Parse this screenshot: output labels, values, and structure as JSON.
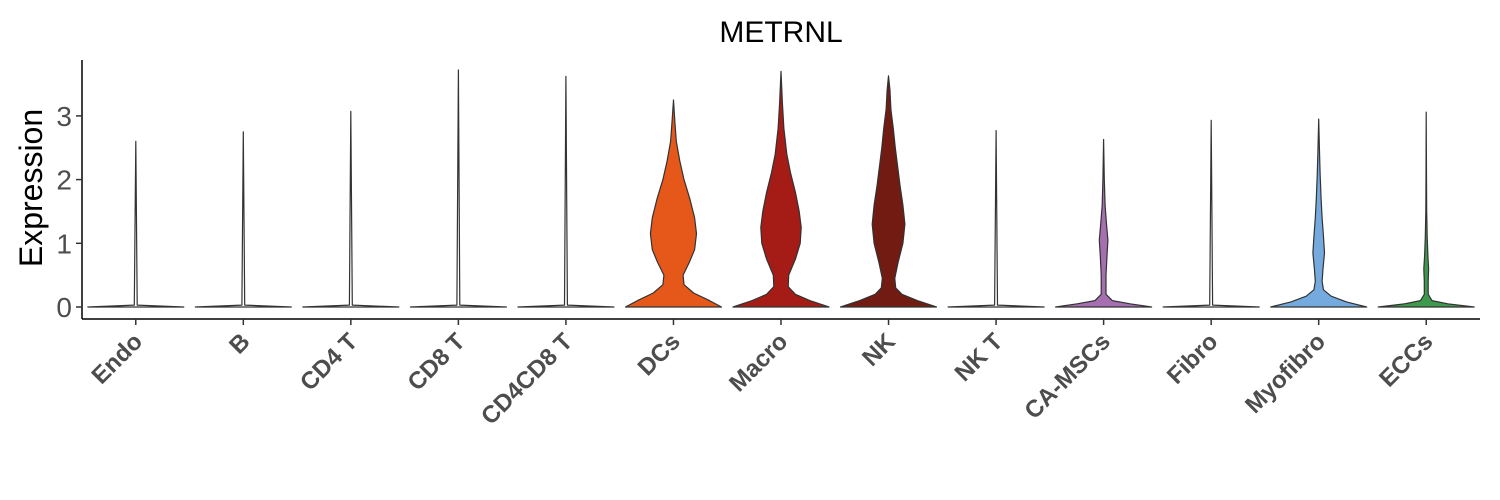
{
  "chart_data": {
    "type": "violin",
    "title": "METRNL",
    "ylabel": "Expression",
    "xlabel": "",
    "ylim": [
      -0.2,
      3.9
    ],
    "yticks": [
      0,
      1,
      2,
      3
    ],
    "yticklabels": [
      "0",
      "1",
      "2",
      "3"
    ],
    "grid": false,
    "legend": "none",
    "categories": [
      "Endo",
      "B",
      "CD4 T",
      "CD8 T",
      "CD4CD8 T",
      "DCs",
      "Macro",
      "NK",
      "NK T",
      "CA-MSCs",
      "Fibro",
      "Myofibro",
      "ECCs"
    ],
    "violins": [
      {
        "category": "Endo",
        "color": "#ffffff",
        "max": 2.6,
        "profile": [
          [
            0,
            1.0
          ],
          [
            0.03,
            0.03
          ],
          [
            2.6,
            0.0
          ]
        ]
      },
      {
        "category": "B",
        "color": "#ffffff",
        "max": 2.75,
        "profile": [
          [
            0,
            1.0
          ],
          [
            0.03,
            0.03
          ],
          [
            2.75,
            0.0
          ]
        ]
      },
      {
        "category": "CD4 T",
        "color": "#ffffff",
        "max": 3.07,
        "profile": [
          [
            0,
            1.0
          ],
          [
            0.03,
            0.03
          ],
          [
            3.07,
            0.0
          ]
        ]
      },
      {
        "category": "CD8 T",
        "color": "#ffffff",
        "max": 3.72,
        "profile": [
          [
            0,
            1.0
          ],
          [
            0.03,
            0.03
          ],
          [
            3.72,
            0.0
          ]
        ]
      },
      {
        "category": "CD4CD8 T",
        "color": "#ffffff",
        "max": 3.62,
        "profile": [
          [
            0,
            1.0
          ],
          [
            0.03,
            0.03
          ],
          [
            3.62,
            0.0
          ]
        ]
      },
      {
        "category": "DCs",
        "color": "#e6581a",
        "max": 3.25,
        "profile": [
          [
            0,
            1.0
          ],
          [
            0.1,
            0.75
          ],
          [
            0.22,
            0.42
          ],
          [
            0.35,
            0.22
          ],
          [
            0.5,
            0.2
          ],
          [
            0.7,
            0.33
          ],
          [
            0.9,
            0.44
          ],
          [
            1.15,
            0.48
          ],
          [
            1.4,
            0.44
          ],
          [
            1.7,
            0.34
          ],
          [
            2.0,
            0.22
          ],
          [
            2.3,
            0.13
          ],
          [
            2.6,
            0.06
          ],
          [
            2.9,
            0.03
          ],
          [
            3.25,
            0.0
          ]
        ]
      },
      {
        "category": "Macro",
        "color": "#a51b16",
        "max": 3.7,
        "profile": [
          [
            0,
            1.0
          ],
          [
            0.1,
            0.6
          ],
          [
            0.2,
            0.3
          ],
          [
            0.32,
            0.15
          ],
          [
            0.5,
            0.16
          ],
          [
            0.75,
            0.3
          ],
          [
            1.0,
            0.4
          ],
          [
            1.25,
            0.42
          ],
          [
            1.5,
            0.38
          ],
          [
            1.8,
            0.3
          ],
          [
            2.1,
            0.2
          ],
          [
            2.4,
            0.12
          ],
          [
            2.8,
            0.06
          ],
          [
            3.2,
            0.03
          ],
          [
            3.7,
            0.0
          ]
        ]
      },
      {
        "category": "NK",
        "color": "#711b12",
        "max": 3.63,
        "profile": [
          [
            0,
            1.0
          ],
          [
            0.1,
            0.6
          ],
          [
            0.2,
            0.28
          ],
          [
            0.3,
            0.15
          ],
          [
            0.45,
            0.13
          ],
          [
            0.7,
            0.2
          ],
          [
            1.0,
            0.3
          ],
          [
            1.3,
            0.34
          ],
          [
            1.6,
            0.3
          ],
          [
            1.9,
            0.24
          ],
          [
            2.2,
            0.19
          ],
          [
            2.5,
            0.14
          ],
          [
            2.8,
            0.1
          ],
          [
            3.1,
            0.05
          ],
          [
            3.4,
            0.03
          ],
          [
            3.63,
            0.0
          ]
        ]
      },
      {
        "category": "NK T",
        "color": "#ffffff",
        "max": 2.77,
        "profile": [
          [
            0,
            1.0
          ],
          [
            0.03,
            0.03
          ],
          [
            2.77,
            0.0
          ]
        ]
      },
      {
        "category": "CA-MSCs",
        "color": "#a66fb1",
        "max": 2.63,
        "profile": [
          [
            0,
            1.0
          ],
          [
            0.05,
            0.55
          ],
          [
            0.1,
            0.18
          ],
          [
            0.2,
            0.05
          ],
          [
            0.5,
            0.05
          ],
          [
            0.8,
            0.07
          ],
          [
            1.05,
            0.09
          ],
          [
            1.3,
            0.06
          ],
          [
            1.6,
            0.03
          ],
          [
            2.0,
            0.015
          ],
          [
            2.63,
            0.0
          ]
        ]
      },
      {
        "category": "Fibro",
        "color": "#ffffff",
        "max": 2.93,
        "profile": [
          [
            0,
            1.0
          ],
          [
            0.03,
            0.03
          ],
          [
            2.93,
            0.0
          ]
        ]
      },
      {
        "category": "Myofibro",
        "color": "#74aadd",
        "max": 2.95,
        "profile": [
          [
            0,
            1.0
          ],
          [
            0.08,
            0.58
          ],
          [
            0.17,
            0.26
          ],
          [
            0.27,
            0.1
          ],
          [
            0.4,
            0.07
          ],
          [
            0.6,
            0.09
          ],
          [
            0.85,
            0.12
          ],
          [
            1.1,
            0.1
          ],
          [
            1.4,
            0.07
          ],
          [
            1.7,
            0.05
          ],
          [
            2.1,
            0.03
          ],
          [
            2.5,
            0.015
          ],
          [
            2.95,
            0.0
          ]
        ]
      },
      {
        "category": "ECCs",
        "color": "#3d9a4d",
        "max": 3.06,
        "profile": [
          [
            0,
            1.0
          ],
          [
            0.05,
            0.45
          ],
          [
            0.1,
            0.12
          ],
          [
            0.2,
            0.04
          ],
          [
            0.4,
            0.04
          ],
          [
            0.6,
            0.05
          ],
          [
            0.8,
            0.035
          ],
          [
            1.1,
            0.02
          ],
          [
            1.5,
            0.01
          ],
          [
            2.0,
            0.005
          ],
          [
            3.06,
            0.0
          ]
        ]
      }
    ]
  }
}
